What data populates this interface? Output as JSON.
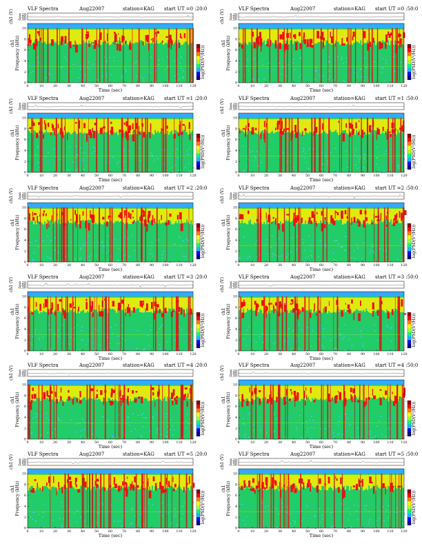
{
  "figure": {
    "panels": [
      {
        "title": {
          "left": "VLF Spectra",
          "date": "Aug22007",
          "station": "station=KAG",
          "start": "start  UT  =0 :20:0"
        }
      },
      {
        "title": {
          "left": "VLF Spectra",
          "date": "Aug22007",
          "station": "station=KAG",
          "start": "start  UT  =0 :50:0"
        }
      },
      {
        "title": {
          "left": "VLF Spectra",
          "date": "Aug22007",
          "station": "station=KAG",
          "start": "start  UT  =1 :20:0"
        }
      },
      {
        "title": {
          "left": "VLF Spectra",
          "date": "Aug22007",
          "station": "station=KAG",
          "start": "start  UT  =1 :50:0"
        }
      },
      {
        "title": {
          "left": "VLF Spectra",
          "date": "Aug22007",
          "station": "station=KAG",
          "start": "start  UT  =2 :20:0"
        }
      },
      {
        "title": {
          "left": "VLF Spectra",
          "date": "Aug22007",
          "station": "station=KAG",
          "start": "start  UT  =2 :50:0"
        }
      },
      {
        "title": {
          "left": "VLF Spectra",
          "date": "Aug22007",
          "station": "station=KAG",
          "start": "start  UT  =3 :20:0"
        }
      },
      {
        "title": {
          "left": "VLF Spectra",
          "date": "Aug22007",
          "station": "station=KAG",
          "start": "start  UT  =3 :50:0"
        }
      },
      {
        "title": {
          "left": "VLF Spectra",
          "date": "Aug22007",
          "station": "station=KAG",
          "start": "start  UT  =4 :20:0"
        }
      },
      {
        "title": {
          "left": "VLF Spectra",
          "date": "Aug22007",
          "station": "station=KAG",
          "start": "start  UT  =4 :50:0"
        }
      },
      {
        "title": {
          "left": "VLF Spectra",
          "date": "Aug22007",
          "station": "station=KAG",
          "start": "start  UT  =5 :20:0"
        }
      },
      {
        "title": {
          "left": "VLF Spectra",
          "date": "Aug22007",
          "station": "station=KAG",
          "start": "start  UT  =5 :50:0"
        }
      }
    ],
    "labels": {
      "waveform_ylabel": "ch1 (V)",
      "spectrogram_ylabel_top": "ch1",
      "spectrogram_ylabel": "Frequency  (kHz)",
      "xlabel": "Time  (sec)",
      "colorbar_label": "log(PSD(V²/Hz))"
    }
  },
  "chart_data": {
    "type": "heatmap",
    "waveform": {
      "ylim": [
        -0.5,
        0.5
      ],
      "yticks": [
        "0.20",
        "0.00",
        "-0.50"
      ]
    },
    "spectrogram": {
      "xlim": [
        0,
        120
      ],
      "xticks": [
        "0",
        "10",
        "20",
        "30",
        "40",
        "50",
        "60",
        "70",
        "80",
        "90",
        "100",
        "110",
        "120"
      ],
      "ylim": [
        0,
        10
      ],
      "yticks": [
        "0",
        "2",
        "4",
        "6",
        "8",
        "10"
      ]
    },
    "colorbar": {
      "colors": [
        "#00008b",
        "#0000ff",
        "#00bfff",
        "#00ff80",
        "#adff2f",
        "#ffff00",
        "#ff8000",
        "#ff0000",
        "#8b0000"
      ],
      "tick_left": [
        "-",
        "-"
      ]
    },
    "colors": {
      "background": "#22cc66",
      "noise_low": "#33aaff",
      "band": "#ffee00",
      "burst": "#ee1111",
      "dark": "#444444"
    }
  }
}
